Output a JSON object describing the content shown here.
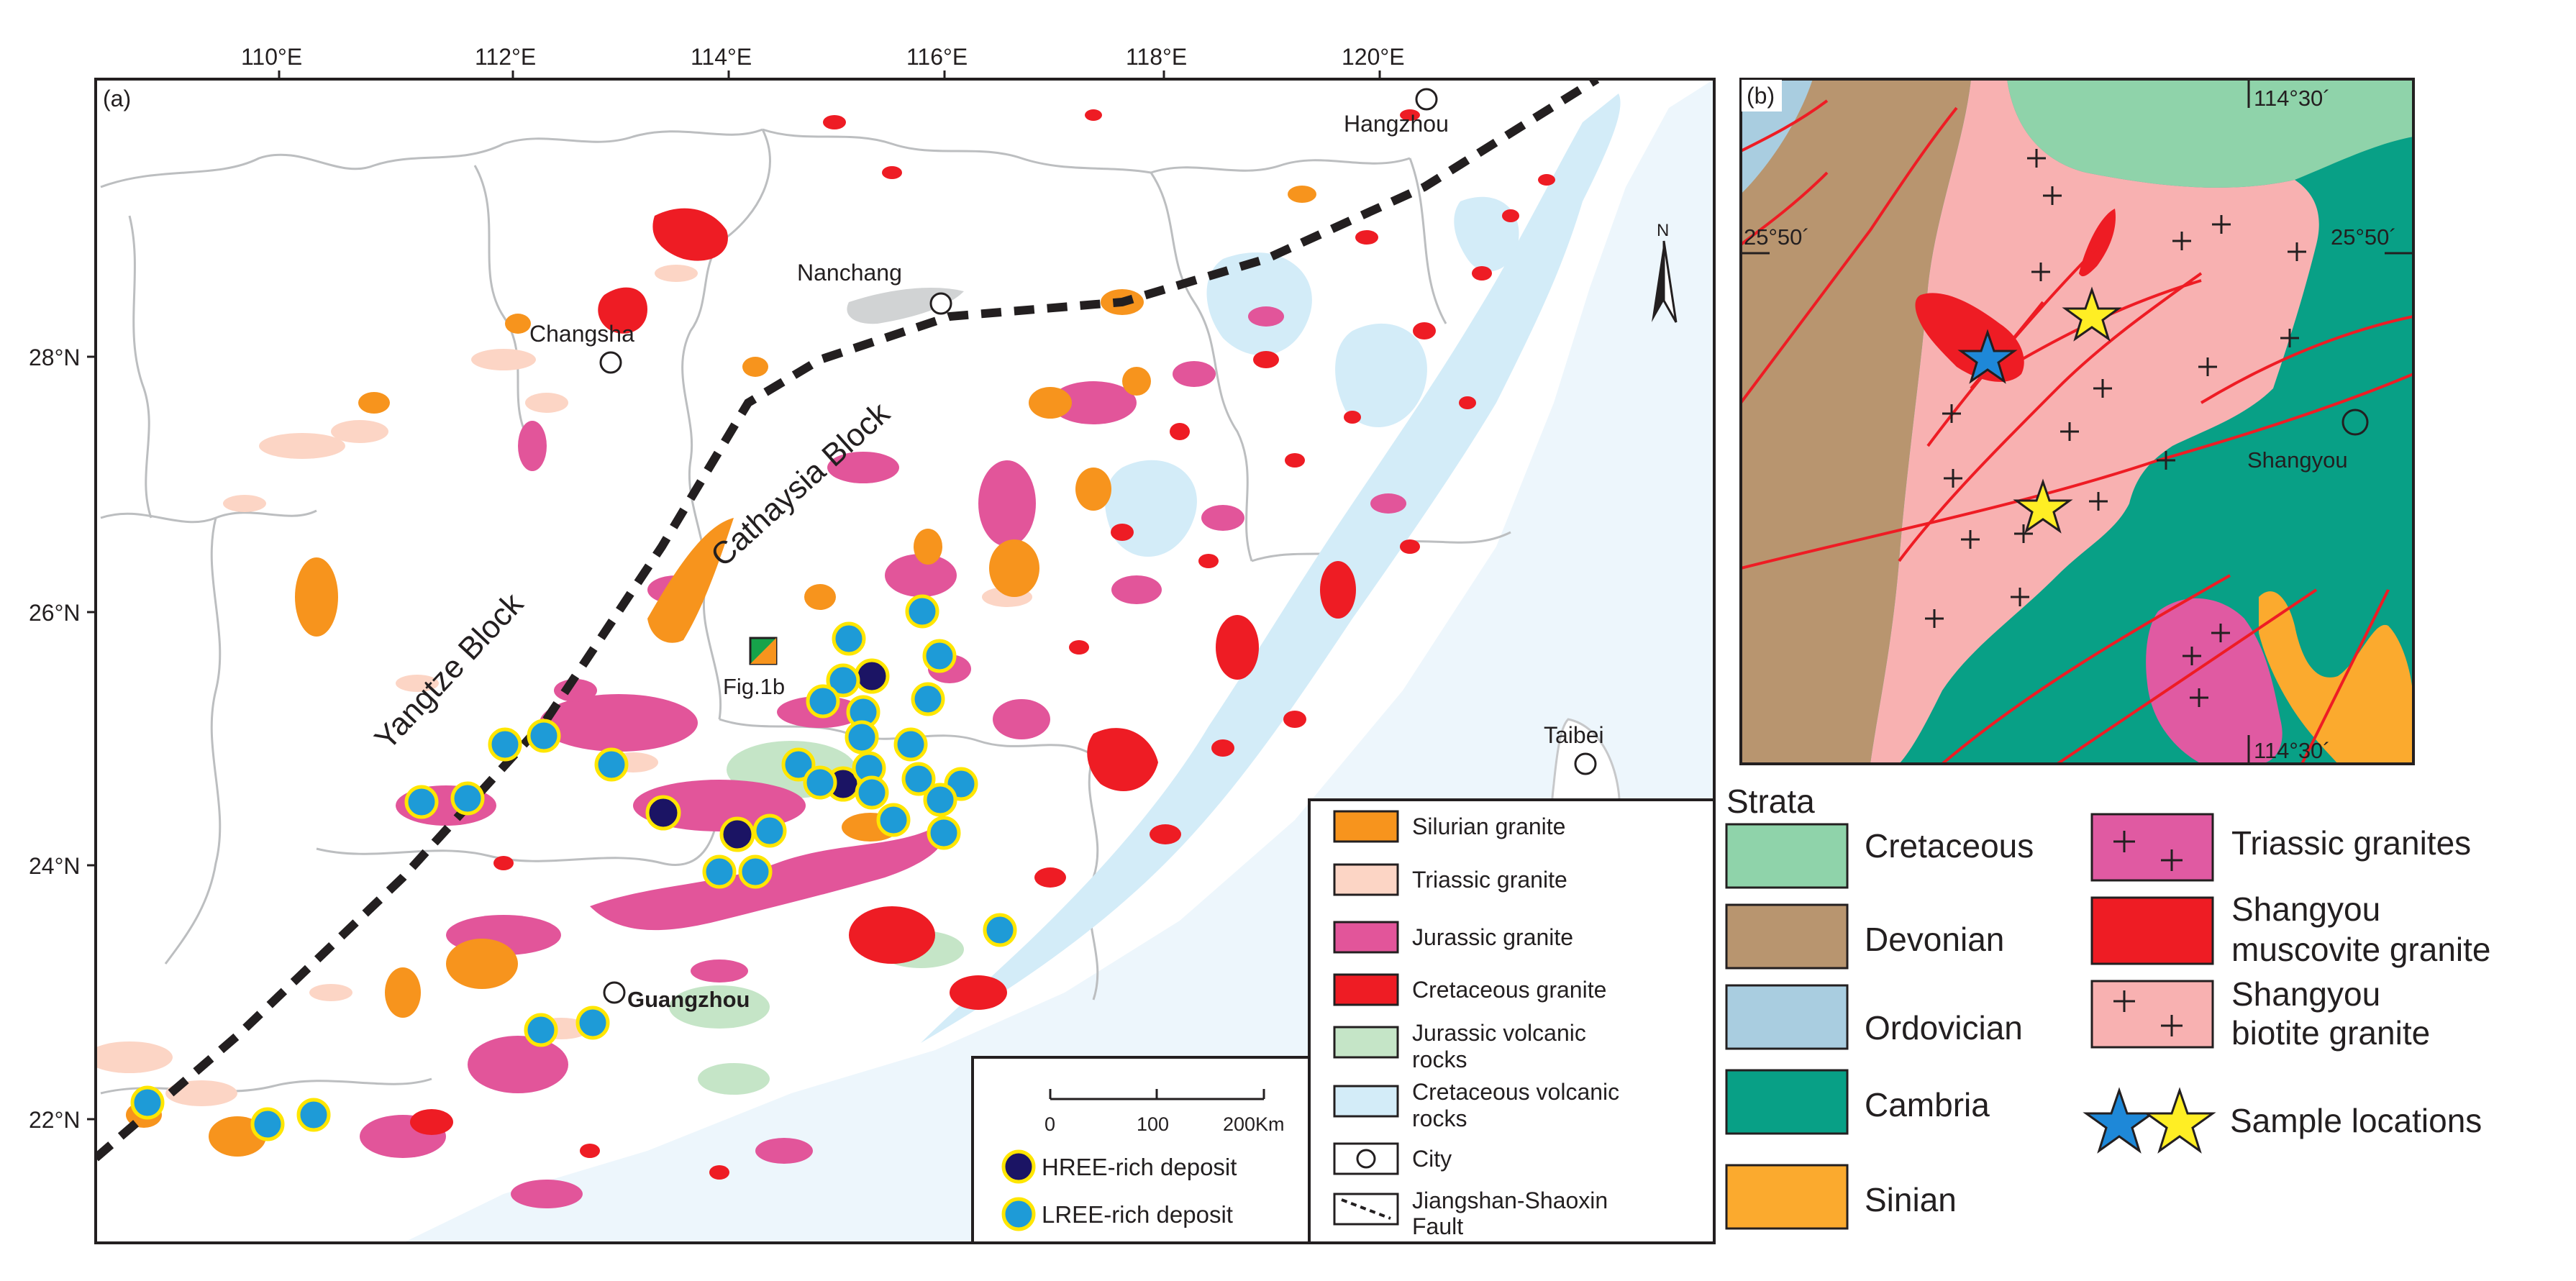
{
  "panel_a": {
    "label": "(a)",
    "lon_ticks": [
      "110°E",
      "112°E",
      "114°E",
      "116°E",
      "118°E",
      "120°E"
    ],
    "lat_ticks": [
      "28°N",
      "26°N",
      "24°N",
      "22°N"
    ],
    "cities": {
      "hangzhou": "Hangzhou",
      "nanchang": "Nanchang",
      "changsha": "Changsha",
      "taibei": "Taibei",
      "guangzhou": "Guangzhou"
    },
    "blocks": {
      "yangtze": "Yangtze Block",
      "cathaysia": "Cathaysia Block"
    },
    "fig1b_label": "Fig.1b",
    "scale": {
      "ticks": [
        "0",
        "100",
        "200Km"
      ]
    },
    "deposit_legend": {
      "hree": "HREE-rich deposit",
      "lree": "LREE-rich deposit"
    },
    "legend": [
      {
        "label": "Silurian granite",
        "color": "#f7941d"
      },
      {
        "label": "Triassic granite",
        "color": "#fcd5c5"
      },
      {
        "label": "Jurassic granite",
        "color": "#e2559a"
      },
      {
        "label": "Cretaceous granite",
        "color": "#ee1c24"
      },
      {
        "label_1": "Jurassic volcanic",
        "label_2": "rocks",
        "color": "#c5e5c7"
      },
      {
        "label_1": "Cretaceous volcanic",
        "label_2": "rocks",
        "color": "#d3ecf8"
      },
      {
        "label": "City"
      },
      {
        "label_1": "Jiangshan-Shaoxin",
        "label_2": "Fault"
      }
    ]
  },
  "panel_b": {
    "label": "(b)",
    "lon_label_top": "114°30´",
    "lon_label_bottom": "114°30´",
    "lat_label_left": "25°50´",
    "lat_label_right": "25°50´",
    "city": "Shangyou"
  },
  "legend_b": {
    "title": "Strata",
    "items": [
      {
        "label": "Cretaceous",
        "color": "#8fd3aa"
      },
      {
        "label": "Devonian",
        "color": "#b8956f"
      },
      {
        "label": "Ordovician",
        "color": "#a9cde0"
      },
      {
        "label": "Cambria",
        "color": "#08a086"
      },
      {
        "label": "Sinian",
        "color": "#fbaa2e"
      },
      {
        "label": "Triassic granites",
        "color": "#e05aa2"
      },
      {
        "label_1": "Shangyou",
        "label_2": "muscovite granite",
        "color": "#ee1c24"
      },
      {
        "label_1": "Shangyou",
        "label_2": "biotite granite",
        "color": "#f8b1b1"
      },
      {
        "label": "Sample locations",
        "colors": [
          "#1e88d8",
          "#ffee24"
        ]
      }
    ]
  }
}
